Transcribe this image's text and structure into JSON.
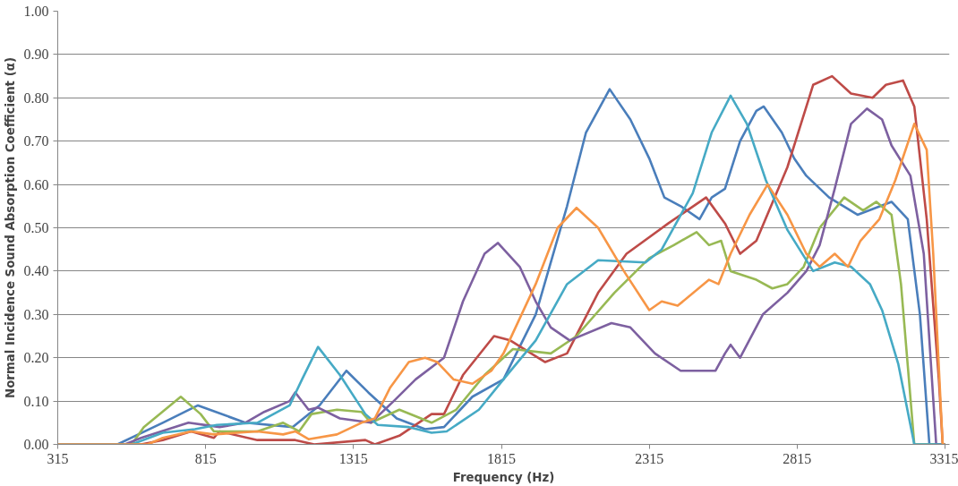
{
  "chart_data": {
    "type": "line",
    "xlabel": "Frequency (Hz)",
    "ylabel": "Normal Incidence Sound Absorption Coefficient (α)",
    "xlim": [
      315,
      3330
    ],
    "xticks": [
      315,
      815,
      1315,
      1815,
      2315,
      2815,
      3315
    ],
    "ylim": [
      0,
      1
    ],
    "yticks": [
      {
        "value": 0,
        "label": "0.00"
      },
      {
        "value": 0.1,
        "label": "0.10"
      },
      {
        "value": 0.2,
        "label": "0.20"
      },
      {
        "value": 0.3,
        "label": "0.30"
      },
      {
        "value": 0.4,
        "label": "0.40"
      },
      {
        "value": 0.5,
        "label": "0.50"
      },
      {
        "value": 0.6,
        "label": "0.60"
      },
      {
        "value": 0.7,
        "label": "0.70"
      },
      {
        "value": 0.8,
        "label": "0.80"
      },
      {
        "value": 0.9,
        "label": "0.90"
      },
      {
        "value": 1,
        "label": "1.00"
      }
    ],
    "grid": "y",
    "line_style": "solid",
    "marker": "none",
    "series": [
      {
        "color": "#4a7ebb",
        "x": [
          315,
          517,
          670,
          789,
          949,
          1109,
          1200,
          1291,
          1365,
          1461,
          1557,
          1621,
          1717,
          1822,
          1931,
          2037,
          2101,
          2181,
          2251,
          2315,
          2366,
          2421,
          2485,
          2526,
          2571,
          2622,
          2677,
          2702,
          2763,
          2805,
          2846,
          2923,
          3019,
          3134,
          3189,
          3230,
          3262,
          3315
        ],
        "values": [
          0,
          0,
          0.05,
          0.09,
          0.05,
          0.04,
          0.09,
          0.17,
          0.12,
          0.06,
          0.035,
          0.04,
          0.11,
          0.15,
          0.3,
          0.55,
          0.72,
          0.82,
          0.75,
          0.66,
          0.57,
          0.55,
          0.52,
          0.57,
          0.59,
          0.7,
          0.77,
          0.78,
          0.72,
          0.66,
          0.62,
          0.57,
          0.53,
          0.56,
          0.52,
          0.3,
          0,
          0
        ]
      },
      {
        "color": "#be4b48",
        "x": [
          315,
          597,
          670,
          766,
          843,
          862,
          990,
          1118,
          1182,
          1355,
          1387,
          1470,
          1579,
          1621,
          1685,
          1790,
          1845,
          1963,
          2037,
          2142,
          2238,
          2379,
          2507,
          2571,
          2622,
          2677,
          2782,
          2869,
          2933,
          2997,
          3070,
          3115,
          3173,
          3211,
          3253,
          3294,
          3307,
          3315
        ],
        "values": [
          0,
          0,
          0.01,
          0.03,
          0.015,
          0.03,
          0.01,
          0.01,
          0,
          0.01,
          0,
          0.02,
          0.07,
          0.07,
          0.16,
          0.25,
          0.24,
          0.19,
          0.21,
          0.35,
          0.44,
          0.51,
          0.57,
          0.51,
          0.44,
          0.47,
          0.64,
          0.83,
          0.85,
          0.81,
          0.8,
          0.83,
          0.84,
          0.78,
          0.52,
          0.15,
          0,
          0
        ]
      },
      {
        "color": "#98b954",
        "x": [
          315,
          565,
          606,
          731,
          798,
          843,
          990,
          1077,
          1131,
          1173,
          1259,
          1342,
          1374,
          1470,
          1579,
          1662,
          1758,
          1854,
          1982,
          2069,
          2197,
          2315,
          2398,
          2475,
          2517,
          2558,
          2590,
          2677,
          2731,
          2782,
          2837,
          2891,
          2974,
          3038,
          3083,
          3134,
          3166,
          3211,
          3315
        ],
        "values": [
          0,
          0,
          0.04,
          0.11,
          0.07,
          0.03,
          0.03,
          0.05,
          0.03,
          0.07,
          0.08,
          0.075,
          0.05,
          0.08,
          0.05,
          0.08,
          0.16,
          0.22,
          0.21,
          0.25,
          0.35,
          0.43,
          0.46,
          0.49,
          0.46,
          0.47,
          0.4,
          0.38,
          0.36,
          0.37,
          0.41,
          0.5,
          0.57,
          0.54,
          0.56,
          0.53,
          0.37,
          0,
          0
        ]
      },
      {
        "color": "#7d60a0",
        "x": [
          315,
          542,
          597,
          757,
          862,
          949,
          1013,
          1099,
          1118,
          1163,
          1195,
          1269,
          1374,
          1451,
          1525,
          1621,
          1685,
          1758,
          1803,
          1877,
          1931,
          1982,
          2046,
          2187,
          2251,
          2334,
          2421,
          2539,
          2571,
          2590,
          2622,
          2699,
          2782,
          2846,
          2891,
          2942,
          2997,
          3051,
          3102,
          3134,
          3198,
          3243,
          3285,
          3315
        ],
        "values": [
          0,
          0,
          0.015,
          0.05,
          0.04,
          0.05,
          0.075,
          0.1,
          0.12,
          0.08,
          0.085,
          0.06,
          0.05,
          0.1,
          0.15,
          0.2,
          0.33,
          0.44,
          0.465,
          0.41,
          0.33,
          0.27,
          0.24,
          0.28,
          0.27,
          0.21,
          0.17,
          0.17,
          0.21,
          0.23,
          0.2,
          0.3,
          0.35,
          0.4,
          0.46,
          0.59,
          0.74,
          0.775,
          0.75,
          0.69,
          0.62,
          0.44,
          0,
          0
        ]
      },
      {
        "color": "#46aac5",
        "x": [
          315,
          565,
          670,
          779,
          853,
          990,
          1099,
          1141,
          1195,
          1269,
          1355,
          1397,
          1502,
          1579,
          1630,
          1739,
          1822,
          1931,
          2037,
          2142,
          2302,
          2357,
          2462,
          2526,
          2590,
          2645,
          2709,
          2782,
          2869,
          2942,
          2997,
          3061,
          3102,
          3157,
          3211,
          3315
        ],
        "values": [
          0,
          0,
          0.027,
          0.035,
          0.045,
          0.05,
          0.09,
          0.15,
          0.225,
          0.16,
          0.07,
          0.045,
          0.04,
          0.027,
          0.03,
          0.08,
          0.15,
          0.24,
          0.37,
          0.425,
          0.42,
          0.45,
          0.58,
          0.72,
          0.805,
          0.74,
          0.61,
          0.495,
          0.4,
          0.42,
          0.41,
          0.37,
          0.31,
          0.185,
          0,
          0
        ]
      },
      {
        "color": "#f79646",
        "x": [
          315,
          619,
          670,
          766,
          843,
          990,
          1077,
          1118,
          1163,
          1259,
          1342,
          1387,
          1438,
          1502,
          1557,
          1598,
          1653,
          1717,
          1781,
          1822,
          1931,
          2005,
          2069,
          2142,
          2229,
          2315,
          2357,
          2411,
          2517,
          2549,
          2590,
          2654,
          2715,
          2782,
          2846,
          2891,
          2942,
          2987,
          3029,
          3093,
          3147,
          3211,
          3253,
          3275,
          3307,
          3315
        ],
        "values": [
          0,
          0,
          0.015,
          0.03,
          0.023,
          0.03,
          0.023,
          0.03,
          0.012,
          0.023,
          0.05,
          0.06,
          0.13,
          0.19,
          0.2,
          0.19,
          0.15,
          0.14,
          0.17,
          0.21,
          0.37,
          0.5,
          0.546,
          0.5,
          0.4,
          0.31,
          0.33,
          0.32,
          0.38,
          0.37,
          0.44,
          0.53,
          0.6,
          0.53,
          0.44,
          0.41,
          0.44,
          0.41,
          0.47,
          0.52,
          0.61,
          0.74,
          0.68,
          0.44,
          0,
          0
        ]
      }
    ]
  }
}
